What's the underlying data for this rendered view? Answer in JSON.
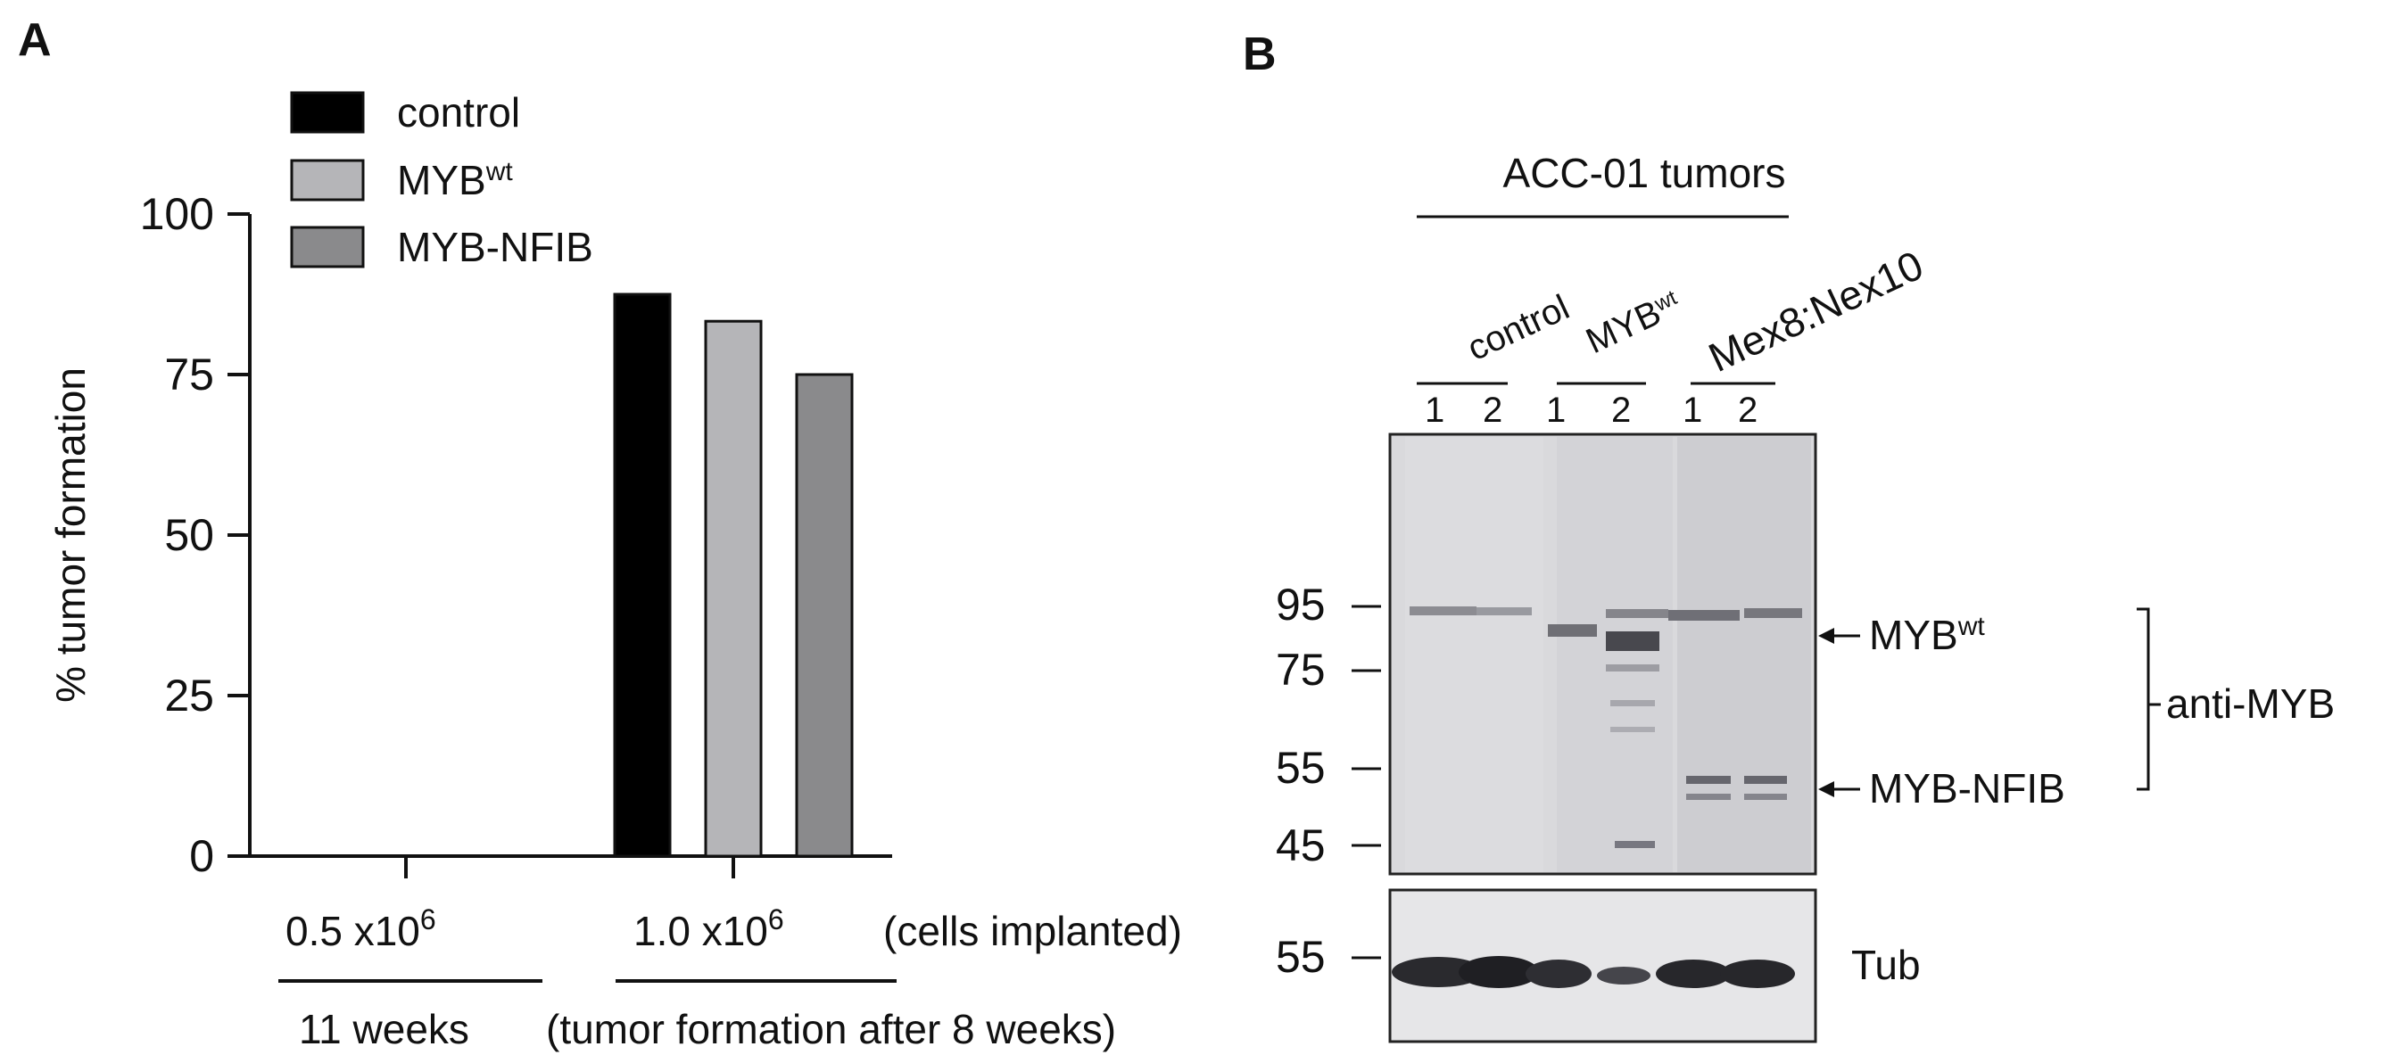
{
  "panel_a": {
    "letter": "A",
    "legend": [
      {
        "label": "control",
        "sup": ""
      },
      {
        "label": "MYB",
        "sup": "wt"
      },
      {
        "label": "MYB-NFIB",
        "sup": ""
      }
    ],
    "bottom": {
      "group1_value": "0.5 x10",
      "group1_exp": "6",
      "group2_value": "1.0 x10",
      "group2_exp": "6",
      "cells_note": "(cells implanted)",
      "time1": "11 weeks",
      "time2": "(tumor formation after 8 weeks)"
    }
  },
  "panel_b": {
    "letter": "B",
    "header": "ACC-01 tumors",
    "group_labels": [
      {
        "text": "control",
        "sup": ""
      },
      {
        "text": "MYB",
        "sup": "wt"
      },
      {
        "text": "Mex8:Nex10",
        "sup": ""
      }
    ],
    "lane_numbers": [
      "1",
      "2",
      "1",
      "2",
      "1",
      "2"
    ],
    "markers_top": [
      "95",
      "75",
      "55",
      "45"
    ],
    "markers_bottom": [
      "55"
    ],
    "band_labels": [
      {
        "text": "MYB",
        "sup": "wt"
      },
      {
        "text": "MYB-NFIB",
        "sup": ""
      }
    ],
    "bracket_label": "anti-MYB",
    "loading_label": "Tub"
  },
  "chart_data": {
    "type": "bar",
    "categories": [
      "0.5 x10^6",
      "1.0 x10^6"
    ],
    "series": [
      {
        "name": "control",
        "values": [
          0,
          87.5
        ],
        "color": "#000000"
      },
      {
        "name": "MYBwt",
        "values": [
          0,
          83.3
        ],
        "color": "#b5b5b8"
      },
      {
        "name": "MYB-NFIB",
        "values": [
          0,
          75
        ],
        "color": "#8a8a8c"
      }
    ],
    "ylabel": "% tumor formation",
    "ylim": [
      0,
      100
    ],
    "yticks": [
      0,
      25,
      50,
      75,
      100
    ],
    "grid": false,
    "legend": "top-left"
  }
}
